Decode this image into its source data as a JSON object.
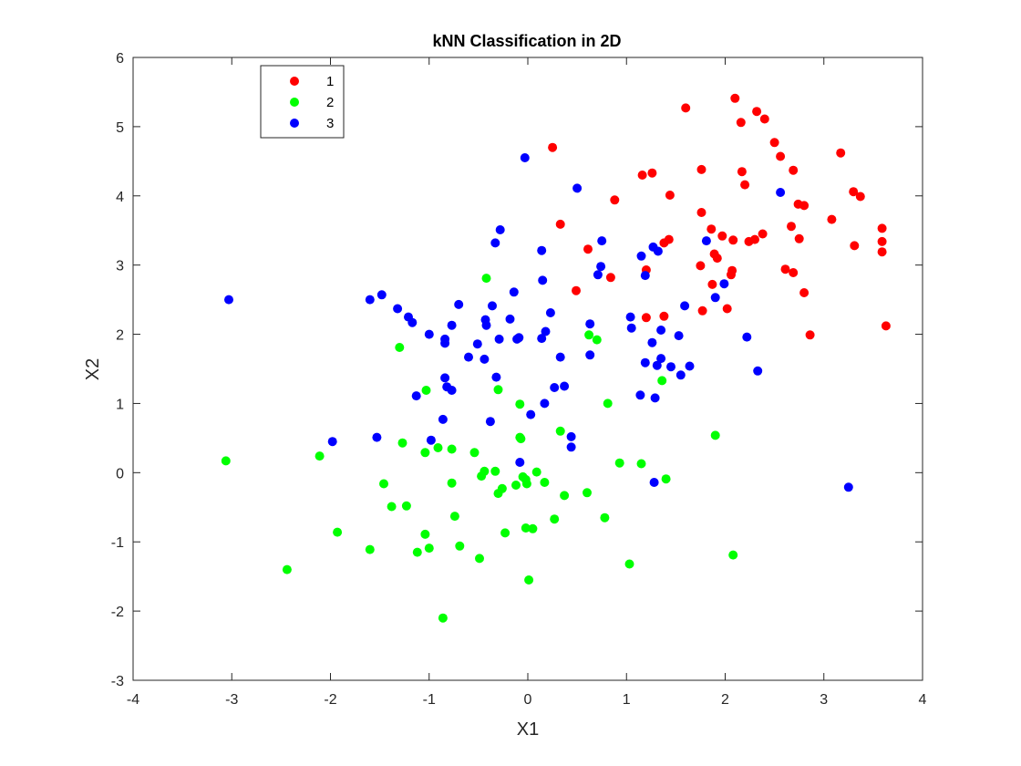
{
  "chart_data": {
    "type": "scatter",
    "title": "kNN Classification in 2D",
    "xlabel": "X1",
    "ylabel": "X2",
    "xlim": [
      -4,
      4
    ],
    "ylim": [
      -3,
      6
    ],
    "xticks": [
      "-4",
      "-3",
      "-2",
      "-1",
      "0",
      "1",
      "2",
      "3",
      "4"
    ],
    "yticks": [
      "-3",
      "-2",
      "-1",
      "0",
      "1",
      "2",
      "3",
      "4",
      "5",
      "6"
    ],
    "grid": false,
    "legend_position": "top-left",
    "series": [
      {
        "name": "1",
        "color": "#ff0000",
        "points": [
          [
            0.25,
            4.7
          ],
          [
            0.33,
            3.59
          ],
          [
            0.61,
            3.23
          ],
          [
            0.49,
            2.63
          ],
          [
            0.84,
            2.82
          ],
          [
            0.88,
            3.94
          ],
          [
            1.16,
            4.3
          ],
          [
            1.26,
            4.33
          ],
          [
            1.44,
            4.01
          ],
          [
            1.38,
            3.32
          ],
          [
            1.43,
            3.37
          ],
          [
            1.2,
            2.93
          ],
          [
            1.2,
            2.24
          ],
          [
            1.38,
            2.26
          ],
          [
            1.6,
            5.27
          ],
          [
            1.76,
            4.38
          ],
          [
            1.76,
            3.76
          ],
          [
            1.75,
            2.99
          ],
          [
            1.77,
            2.34
          ],
          [
            1.86,
            3.52
          ],
          [
            1.87,
            2.72
          ],
          [
            1.89,
            3.16
          ],
          [
            1.92,
            3.1
          ],
          [
            1.97,
            3.42
          ],
          [
            2.02,
            2.37
          ],
          [
            2.06,
            2.86
          ],
          [
            2.07,
            2.92
          ],
          [
            2.08,
            3.36
          ],
          [
            2.1,
            5.41
          ],
          [
            2.16,
            5.06
          ],
          [
            2.17,
            4.35
          ],
          [
            2.2,
            4.16
          ],
          [
            2.24,
            3.34
          ],
          [
            2.3,
            3.37
          ],
          [
            2.32,
            5.22
          ],
          [
            2.4,
            5.11
          ],
          [
            2.38,
            3.45
          ],
          [
            2.5,
            4.77
          ],
          [
            2.56,
            4.57
          ],
          [
            2.61,
            2.94
          ],
          [
            2.67,
            3.56
          ],
          [
            2.69,
            4.37
          ],
          [
            2.69,
            2.89
          ],
          [
            2.74,
            3.88
          ],
          [
            2.75,
            3.38
          ],
          [
            2.8,
            3.86
          ],
          [
            2.8,
            2.6
          ],
          [
            2.86,
            1.99
          ],
          [
            3.08,
            3.66
          ],
          [
            3.17,
            4.62
          ],
          [
            3.3,
            4.06
          ],
          [
            3.31,
            3.28
          ],
          [
            3.37,
            3.99
          ],
          [
            3.59,
            3.53
          ],
          [
            3.59,
            3.34
          ],
          [
            3.59,
            3.19
          ],
          [
            3.63,
            2.12
          ]
        ]
      },
      {
        "name": "2",
        "color": "#00ff00",
        "points": [
          [
            -3.06,
            0.17
          ],
          [
            -2.44,
            -1.4
          ],
          [
            -2.11,
            0.24
          ],
          [
            -1.93,
            -0.86
          ],
          [
            -1.6,
            -1.11
          ],
          [
            -1.46,
            -0.16
          ],
          [
            -1.38,
            -0.49
          ],
          [
            -1.3,
            1.81
          ],
          [
            -1.27,
            0.43
          ],
          [
            -1.23,
            -0.48
          ],
          [
            -1.12,
            -1.15
          ],
          [
            -1.03,
            1.19
          ],
          [
            -1.04,
            0.29
          ],
          [
            -1.04,
            -0.89
          ],
          [
            -1.0,
            -1.09
          ],
          [
            -0.91,
            0.36
          ],
          [
            -0.86,
            -2.1
          ],
          [
            -0.77,
            0.34
          ],
          [
            -0.77,
            -0.15
          ],
          [
            -0.74,
            -0.63
          ],
          [
            -0.69,
            -1.06
          ],
          [
            -0.54,
            0.29
          ],
          [
            -0.49,
            -1.24
          ],
          [
            -0.47,
            -0.05
          ],
          [
            -0.44,
            0.02
          ],
          [
            -0.42,
            2.81
          ],
          [
            -0.33,
            0.02
          ],
          [
            -0.3,
            1.2
          ],
          [
            -0.3,
            -0.3
          ],
          [
            -0.26,
            -0.23
          ],
          [
            -0.23,
            -0.87
          ],
          [
            -0.12,
            -0.18
          ],
          [
            -0.08,
            0.99
          ],
          [
            -0.08,
            0.51
          ],
          [
            -0.07,
            0.49
          ],
          [
            -0.05,
            -0.06
          ],
          [
            -0.02,
            -0.1
          ],
          [
            -0.01,
            -0.16
          ],
          [
            -0.02,
            -0.8
          ],
          [
            0.01,
            -1.55
          ],
          [
            0.05,
            -0.81
          ],
          [
            0.09,
            0.01
          ],
          [
            0.17,
            -0.14
          ],
          [
            0.27,
            -0.67
          ],
          [
            0.33,
            0.6
          ],
          [
            0.37,
            -0.33
          ],
          [
            0.6,
            -0.29
          ],
          [
            0.62,
            1.99
          ],
          [
            0.7,
            1.92
          ],
          [
            0.78,
            -0.65
          ],
          [
            0.81,
            1.0
          ],
          [
            0.93,
            0.14
          ],
          [
            1.03,
            -1.32
          ],
          [
            1.15,
            0.13
          ],
          [
            1.36,
            1.33
          ],
          [
            1.4,
            -0.09
          ],
          [
            1.9,
            0.54
          ],
          [
            2.08,
            -1.19
          ]
        ]
      },
      {
        "name": "3",
        "color": "#0000ff",
        "points": [
          [
            -3.03,
            2.5
          ],
          [
            -1.98,
            0.45
          ],
          [
            -1.6,
            2.5
          ],
          [
            -1.53,
            0.51
          ],
          [
            -1.48,
            2.57
          ],
          [
            -1.32,
            2.37
          ],
          [
            -1.21,
            2.25
          ],
          [
            -1.17,
            2.17
          ],
          [
            -1.13,
            1.11
          ],
          [
            -1.0,
            2.0
          ],
          [
            -0.98,
            0.47
          ],
          [
            -0.86,
            0.77
          ],
          [
            -0.84,
            1.93
          ],
          [
            -0.84,
            1.87
          ],
          [
            -0.84,
            1.37
          ],
          [
            -0.82,
            1.24
          ],
          [
            -0.77,
            2.13
          ],
          [
            -0.77,
            1.19
          ],
          [
            -0.7,
            2.43
          ],
          [
            -0.6,
            1.67
          ],
          [
            -0.51,
            1.86
          ],
          [
            -0.44,
            1.64
          ],
          [
            -0.43,
            2.21
          ],
          [
            -0.42,
            2.13
          ],
          [
            -0.38,
            0.74
          ],
          [
            -0.36,
            2.41
          ],
          [
            -0.33,
            3.32
          ],
          [
            -0.32,
            1.38
          ],
          [
            -0.28,
            3.51
          ],
          [
            -0.29,
            1.93
          ],
          [
            -0.18,
            2.22
          ],
          [
            -0.14,
            2.61
          ],
          [
            -0.11,
            1.93
          ],
          [
            -0.09,
            1.95
          ],
          [
            -0.08,
            0.15
          ],
          [
            -0.03,
            4.55
          ],
          [
            0.03,
            0.84
          ],
          [
            0.14,
            3.21
          ],
          [
            0.14,
            1.94
          ],
          [
            0.15,
            2.78
          ],
          [
            0.18,
            2.04
          ],
          [
            0.17,
            1.0
          ],
          [
            0.23,
            2.31
          ],
          [
            0.27,
            1.23
          ],
          [
            0.33,
            1.67
          ],
          [
            0.37,
            1.25
          ],
          [
            0.44,
            0.52
          ],
          [
            0.44,
            0.37
          ],
          [
            0.5,
            4.11
          ],
          [
            0.63,
            2.15
          ],
          [
            0.63,
            1.7
          ],
          [
            0.71,
            2.86
          ],
          [
            0.74,
            2.98
          ],
          [
            0.75,
            3.35
          ],
          [
            1.04,
            2.25
          ],
          [
            1.05,
            2.09
          ],
          [
            1.14,
            1.12
          ],
          [
            1.15,
            3.13
          ],
          [
            1.19,
            2.85
          ],
          [
            1.19,
            1.59
          ],
          [
            1.26,
            1.88
          ],
          [
            1.27,
            3.26
          ],
          [
            1.29,
            1.08
          ],
          [
            1.31,
            1.55
          ],
          [
            1.32,
            3.2
          ],
          [
            1.35,
            2.06
          ],
          [
            1.35,
            1.65
          ],
          [
            1.45,
            1.53
          ],
          [
            1.53,
            1.98
          ],
          [
            1.55,
            1.41
          ],
          [
            1.59,
            2.41
          ],
          [
            1.64,
            1.54
          ],
          [
            1.81,
            3.35
          ],
          [
            1.9,
            2.53
          ],
          [
            1.99,
            2.73
          ],
          [
            2.22,
            1.96
          ],
          [
            2.33,
            1.47
          ],
          [
            2.56,
            4.05
          ],
          [
            1.28,
            -0.14
          ],
          [
            3.25,
            -0.21
          ]
        ]
      }
    ]
  }
}
